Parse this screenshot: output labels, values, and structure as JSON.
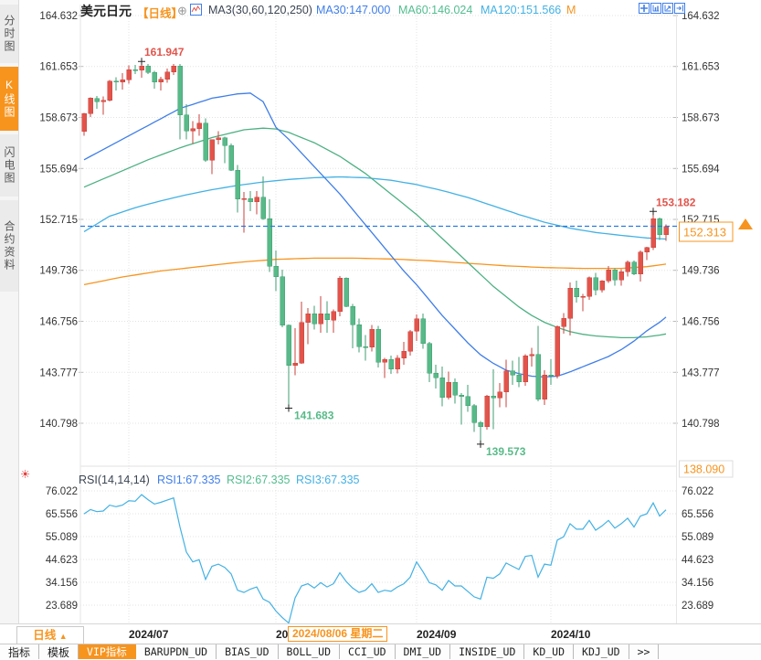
{
  "colors": {
    "up": "#e2544b",
    "up_stroke": "#c8433e",
    "down": "#57ba88",
    "down_stroke": "#3f9e70",
    "ma30": "#3f7ee8",
    "ma60": "#4cb082",
    "ma120": "#42b1e4",
    "ma250": "#f7941e",
    "accent": "#f7941e",
    "dashed": "#2979e0",
    "grid": "#e3e3e3",
    "axis_text": "#333333",
    "rsi_line": "#42b1e4",
    "anno_up": "#e2544b",
    "anno_down": "#57ba88"
  },
  "sidebar": {
    "items": [
      {
        "label": "分时图",
        "active": false
      },
      {
        "label": "K线图",
        "active": true
      },
      {
        "label": "闪电图",
        "active": false
      },
      {
        "label": "合约资料",
        "active": false
      }
    ]
  },
  "header": {
    "symbol": "美元日元",
    "period_tag": "【日线】",
    "add_icon": "⊕",
    "ma_group_label": "MA3(30,60,120,250)",
    "ma30_label": "MA30:147.000",
    "ma60_label": "MA60:146.024",
    "ma120_label": "MA120:151.566",
    "ma250_label": "M"
  },
  "toolbar": {
    "icons": [
      "crosshair-tool",
      "axis-scale-tool",
      "axis-measure-tool",
      "collapse-panel"
    ]
  },
  "main_axis": {
    "values": [
      "164.632",
      "161.653",
      "158.673",
      "155.694",
      "152.715",
      "149.736",
      "146.756",
      "143.777",
      "140.798"
    ],
    "bottom_value": "138.090"
  },
  "rsi_axis": {
    "values": [
      "76.022",
      "65.556",
      "55.089",
      "44.623",
      "34.156",
      "23.689"
    ]
  },
  "rsi_header": {
    "settings_icon": "☀",
    "title": "RSI(14,14,14)",
    "rsi1": "RSI1:67.335",
    "rsi2": "RSI2:67.335",
    "rsi3": "RSI3:67.335"
  },
  "current_price": {
    "value": "152.313",
    "price": 152.313
  },
  "annotations": [
    {
      "text": "161.947",
      "index": 9,
      "price": 161.947,
      "kind": "high"
    },
    {
      "text": "153.182",
      "index": 89,
      "price": 153.182,
      "kind": "high"
    },
    {
      "text": "141.683",
      "index": 32,
      "price": 141.683,
      "kind": "low"
    },
    {
      "text": "139.573",
      "index": 62,
      "price": 139.573,
      "kind": "low"
    }
  ],
  "xaxis": {
    "period_label": "日线",
    "period_arrow": "▲",
    "crosshair": {
      "label": "2024/08/06 星期二",
      "index": 33
    }
  },
  "tabs": {
    "items": [
      "指标",
      "模板",
      "VIP指标",
      "BARUPDN_UD",
      "BIAS_UD",
      "BOLL_UD",
      "CCI_UD",
      "DMI_UD",
      "INSIDE_UD",
      "KD_UD",
      "KDJ_UD",
      ">>"
    ],
    "active": "VIP指标"
  },
  "chart_data": {
    "type": "candlestick",
    "symbol": "美元日元",
    "interval": "日线",
    "y_range_main": [
      138.09,
      164.632
    ],
    "y_range_rsi": [
      23.689,
      76.022
    ],
    "months": [
      {
        "label": "2024/07",
        "index": 7
      },
      {
        "label": "2024/08",
        "index": 30
      },
      {
        "label": "2024/09",
        "index": 52
      },
      {
        "label": "2024/10",
        "index": 73
      }
    ],
    "candles": [
      [
        157.85,
        158.95,
        157.6,
        158.9
      ],
      [
        158.9,
        159.84,
        158.7,
        159.8
      ],
      [
        159.78,
        159.94,
        159.18,
        159.6
      ],
      [
        159.6,
        159.9,
        158.84,
        159.68
      ],
      [
        159.68,
        160.87,
        159.6,
        160.81
      ],
      [
        160.81,
        161.02,
        160.26,
        160.74
      ],
      [
        160.74,
        161.27,
        160.3,
        160.87
      ],
      [
        160.87,
        161.72,
        160.65,
        161.47
      ],
      [
        161.47,
        161.75,
        161.2,
        161.44
      ],
      [
        161.44,
        161.947,
        161.0,
        161.69
      ],
      [
        161.69,
        161.81,
        161.22,
        161.31
      ],
      [
        161.31,
        161.41,
        160.35,
        160.75
      ],
      [
        160.75,
        161.05,
        160.25,
        160.91
      ],
      [
        160.91,
        161.52,
        160.7,
        161.33
      ],
      [
        161.33,
        161.81,
        161.15,
        161.69
      ],
      [
        161.69,
        161.81,
        157.4,
        158.83
      ],
      [
        158.83,
        159.45,
        157.38,
        157.88
      ],
      [
        157.88,
        158.45,
        157.16,
        158.02
      ],
      [
        158.02,
        158.86,
        157.6,
        158.34
      ],
      [
        158.34,
        158.61,
        156.07,
        156.18
      ],
      [
        156.18,
        157.4,
        155.36,
        157.37
      ],
      [
        157.37,
        157.88,
        157.1,
        157.48
      ],
      [
        157.48,
        157.56,
        155.99,
        157.02
      ],
      [
        157.02,
        157.16,
        155.55,
        155.6
      ],
      [
        155.6,
        155.89,
        153.11,
        153.9
      ],
      [
        153.9,
        154.31,
        151.94,
        153.94
      ],
      [
        153.94,
        154.36,
        153.2,
        153.76
      ],
      [
        153.76,
        154.36,
        153.02,
        154.01
      ],
      [
        154.01,
        155.22,
        152.7,
        152.77
      ],
      [
        152.77,
        153.88,
        149.63,
        149.98
      ],
      [
        149.98,
        150.89,
        148.51,
        149.36
      ],
      [
        149.36,
        149.77,
        146.42,
        146.53
      ],
      [
        146.53,
        146.57,
        141.683,
        144.18
      ],
      [
        144.18,
        146.36,
        143.61,
        144.31
      ],
      [
        144.31,
        147.9,
        144.27,
        146.68
      ],
      [
        146.68,
        147.52,
        145.43,
        147.21
      ],
      [
        147.21,
        147.66,
        146.28,
        146.61
      ],
      [
        146.61,
        148.23,
        146.09,
        147.21
      ],
      [
        147.21,
        147.94,
        146.08,
        146.84
      ],
      [
        146.84,
        147.45,
        146.1,
        147.33
      ],
      [
        147.33,
        149.4,
        147.05,
        149.28
      ],
      [
        149.28,
        149.33,
        147.58,
        147.63
      ],
      [
        147.63,
        147.76,
        145.19,
        146.56
      ],
      [
        146.56,
        146.91,
        144.94,
        145.28
      ],
      [
        145.28,
        145.95,
        144.46,
        145.25
      ],
      [
        145.25,
        146.53,
        145.0,
        146.28
      ],
      [
        146.28,
        146.48,
        144.05,
        144.37
      ],
      [
        144.37,
        144.63,
        143.45,
        144.53
      ],
      [
        144.53,
        144.76,
        143.69,
        143.98
      ],
      [
        143.98,
        144.77,
        143.7,
        144.6
      ],
      [
        144.6,
        145.55,
        144.22,
        145.0
      ],
      [
        145.0,
        146.26,
        144.74,
        146.17
      ],
      [
        146.17,
        147.16,
        145.6,
        146.91
      ],
      [
        146.91,
        147.21,
        145.16,
        145.47
      ],
      [
        145.47,
        145.56,
        143.2,
        143.73
      ],
      [
        143.73,
        144.21,
        142.84,
        143.45
      ],
      [
        143.45,
        144.12,
        141.78,
        142.3
      ],
      [
        142.3,
        143.81,
        142.2,
        143.18
      ],
      [
        143.18,
        143.42,
        141.96,
        142.44
      ],
      [
        142.44,
        142.56,
        140.71,
        142.36
      ],
      [
        142.36,
        143.04,
        141.46,
        141.83
      ],
      [
        141.83,
        141.92,
        140.29,
        140.85
      ],
      [
        140.85,
        140.93,
        139.573,
        140.61
      ],
      [
        140.61,
        142.46,
        140.42,
        142.4
      ],
      [
        142.4,
        143.95,
        140.44,
        142.29
      ],
      [
        142.29,
        143.16,
        141.74,
        142.63
      ],
      [
        142.63,
        144.51,
        141.74,
        143.85
      ],
      [
        143.85,
        144.46,
        143.05,
        143.61
      ],
      [
        143.61,
        144.68,
        142.9,
        143.21
      ],
      [
        143.21,
        144.84,
        142.99,
        144.75
      ],
      [
        144.75,
        145.21,
        144.1,
        144.81
      ],
      [
        144.81,
        146.49,
        142.07,
        142.21
      ],
      [
        142.21,
        143.91,
        141.86,
        143.63
      ],
      [
        143.63,
        144.55,
        143.03,
        143.56
      ],
      [
        143.56,
        146.52,
        143.42,
        146.46
      ],
      [
        146.46,
        147.25,
        146.04,
        146.93
      ],
      [
        146.93,
        149.02,
        145.92,
        148.7
      ],
      [
        148.7,
        149.13,
        147.84,
        148.18
      ],
      [
        148.18,
        148.37,
        147.34,
        148.21
      ],
      [
        148.21,
        149.37,
        148.01,
        149.3
      ],
      [
        149.3,
        149.58,
        148.28,
        148.58
      ],
      [
        148.58,
        149.15,
        148.43,
        149.13
      ],
      [
        149.13,
        149.98,
        149.0,
        149.76
      ],
      [
        149.76,
        149.85,
        148.85,
        149.19
      ],
      [
        149.19,
        149.81,
        148.84,
        149.66
      ],
      [
        149.66,
        150.32,
        149.38,
        150.21
      ],
      [
        150.21,
        150.3,
        149.45,
        149.53
      ],
      [
        149.53,
        150.89,
        149.09,
        150.82
      ],
      [
        150.82,
        151.1,
        150.34,
        151.07
      ],
      [
        151.07,
        153.182,
        150.92,
        152.75
      ],
      [
        152.75,
        152.83,
        151.52,
        151.83
      ],
      [
        151.83,
        152.41,
        151.45,
        152.313
      ]
    ],
    "series": [
      {
        "name": "MA30",
        "color_key": "ma30",
        "points": [
          [
            0,
            156.2
          ],
          [
            5,
            157.2
          ],
          [
            10,
            158.2
          ],
          [
            15,
            159.2
          ],
          [
            20,
            159.8
          ],
          [
            24,
            160.05
          ],
          [
            26,
            160.1
          ],
          [
            28,
            159.6
          ],
          [
            30,
            158.1
          ],
          [
            32,
            157.4
          ],
          [
            34,
            156.6
          ],
          [
            36,
            155.8
          ],
          [
            38,
            155.0
          ],
          [
            40,
            154.2
          ],
          [
            42,
            153.3
          ],
          [
            44,
            152.4
          ],
          [
            46,
            151.5
          ],
          [
            48,
            150.6
          ],
          [
            50,
            149.7
          ],
          [
            52,
            148.9
          ],
          [
            54,
            148.0
          ],
          [
            56,
            147.1
          ],
          [
            58,
            146.3
          ],
          [
            60,
            145.5
          ],
          [
            62,
            144.8
          ],
          [
            64,
            144.3
          ],
          [
            66,
            143.9
          ],
          [
            68,
            143.7
          ],
          [
            70,
            143.55
          ],
          [
            72,
            143.5
          ],
          [
            74,
            143.55
          ],
          [
            76,
            143.8
          ],
          [
            78,
            144.1
          ],
          [
            80,
            144.4
          ],
          [
            82,
            144.7
          ],
          [
            84,
            145.1
          ],
          [
            86,
            145.6
          ],
          [
            88,
            146.2
          ],
          [
            90,
            146.7
          ],
          [
            91,
            147.0
          ]
        ]
      },
      {
        "name": "MA60",
        "color_key": "ma60",
        "points": [
          [
            0,
            154.6
          ],
          [
            5,
            155.4
          ],
          [
            10,
            156.2
          ],
          [
            15,
            156.9
          ],
          [
            20,
            157.5
          ],
          [
            25,
            157.95
          ],
          [
            28,
            158.05
          ],
          [
            30,
            158.0
          ],
          [
            32,
            157.8
          ],
          [
            34,
            157.5
          ],
          [
            36,
            157.2
          ],
          [
            38,
            156.8
          ],
          [
            40,
            156.4
          ],
          [
            42,
            155.9
          ],
          [
            44,
            155.4
          ],
          [
            46,
            154.8
          ],
          [
            48,
            154.2
          ],
          [
            50,
            153.6
          ],
          [
            52,
            153.0
          ],
          [
            54,
            152.3
          ],
          [
            56,
            151.6
          ],
          [
            58,
            150.9
          ],
          [
            60,
            150.2
          ],
          [
            62,
            149.5
          ],
          [
            64,
            148.8
          ],
          [
            66,
            148.2
          ],
          [
            68,
            147.6
          ],
          [
            70,
            147.1
          ],
          [
            72,
            146.7
          ],
          [
            74,
            146.4
          ],
          [
            76,
            146.15
          ],
          [
            78,
            146.0
          ],
          [
            80,
            145.9
          ],
          [
            82,
            145.85
          ],
          [
            84,
            145.8
          ],
          [
            86,
            145.8
          ],
          [
            88,
            145.85
          ],
          [
            90,
            145.95
          ],
          [
            91,
            146.02
          ]
        ]
      },
      {
        "name": "MA120",
        "color_key": "ma120",
        "points": [
          [
            0,
            152.0
          ],
          [
            4,
            152.9
          ],
          [
            8,
            153.4
          ],
          [
            12,
            153.8
          ],
          [
            16,
            154.15
          ],
          [
            20,
            154.45
          ],
          [
            24,
            154.7
          ],
          [
            28,
            154.9
          ],
          [
            32,
            155.05
          ],
          [
            36,
            155.15
          ],
          [
            40,
            155.2
          ],
          [
            44,
            155.15
          ],
          [
            48,
            155.0
          ],
          [
            52,
            154.75
          ],
          [
            56,
            154.4
          ],
          [
            60,
            154.0
          ],
          [
            64,
            153.5
          ],
          [
            68,
            153.0
          ],
          [
            72,
            152.55
          ],
          [
            76,
            152.2
          ],
          [
            80,
            151.95
          ],
          [
            84,
            151.78
          ],
          [
            88,
            151.63
          ],
          [
            91,
            151.566
          ]
        ]
      },
      {
        "name": "MA250",
        "color_key": "ma250",
        "points": [
          [
            0,
            148.9
          ],
          [
            6,
            149.35
          ],
          [
            12,
            149.7
          ],
          [
            18,
            149.95
          ],
          [
            24,
            150.2
          ],
          [
            30,
            150.38
          ],
          [
            36,
            150.45
          ],
          [
            42,
            150.45
          ],
          [
            48,
            150.4
          ],
          [
            54,
            150.3
          ],
          [
            60,
            150.15
          ],
          [
            66,
            150.0
          ],
          [
            72,
            149.9
          ],
          [
            78,
            149.85
          ],
          [
            84,
            149.85
          ],
          [
            88,
            149.95
          ],
          [
            91,
            150.1
          ]
        ]
      }
    ],
    "rsi": {
      "name": "RSI(14,14,14)",
      "values": [
        65.5,
        67.5,
        66.5,
        66.8,
        69.5,
        68.8,
        69.5,
        71.5,
        71.3,
        74.3,
        72.0,
        70.0,
        70.8,
        71.8,
        72.8,
        59.5,
        48.0,
        43.5,
        44.5,
        35.5,
        41.5,
        42.5,
        41.0,
        38.0,
        30.5,
        29.5,
        31.0,
        32.0,
        26.5,
        25.0,
        21.0,
        18.0,
        15.5,
        27.0,
        32.5,
        33.5,
        31.5,
        34.0,
        32.0,
        33.5,
        38.5,
        34.5,
        31.5,
        29.5,
        30.5,
        33.5,
        29.5,
        30.5,
        30.0,
        32.0,
        33.5,
        36.5,
        43.5,
        39.0,
        34.0,
        33.0,
        30.5,
        35.0,
        32.5,
        32.5,
        30.0,
        27.5,
        26.5,
        36.5,
        36.0,
        38.0,
        43.0,
        41.5,
        40.0,
        46.0,
        46.5,
        36.5,
        42.5,
        42.0,
        53.5,
        55.0,
        61.0,
        58.5,
        58.5,
        62.5,
        58.0,
        60.0,
        62.5,
        59.0,
        61.0,
        63.5,
        59.5,
        64.5,
        65.5,
        70.5,
        64.5,
        67.335
      ]
    }
  }
}
